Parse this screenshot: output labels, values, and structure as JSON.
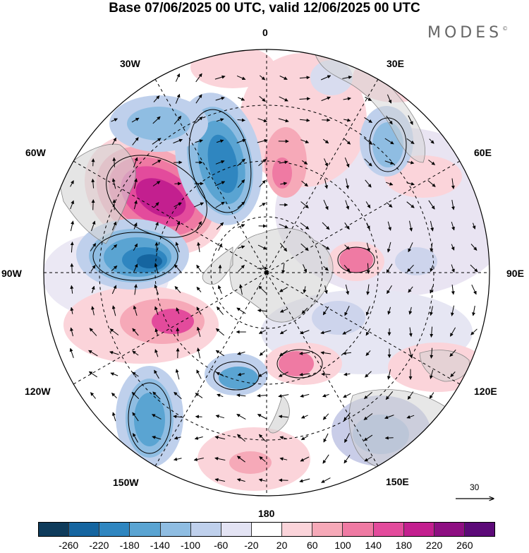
{
  "title": "Base 07/06/2025 00 UTC, valid 12/06/2025 00 UTC",
  "brand": "MODES",
  "brand_mark": "©",
  "longitude_labels": {
    "lon_0": "0",
    "lon_30e": "30E",
    "lon_60e": "60E",
    "lon_90e": "90E",
    "lon_120e": "120E",
    "lon_150e": "150E",
    "lon_180": "180",
    "lon_150w": "150W",
    "lon_120w": "120W",
    "lon_90w": "90W",
    "lon_60w": "60W",
    "lon_30w": "30W"
  },
  "reference_vector_label": "30",
  "colorbar": {
    "colors": [
      "#0e3b5b",
      "#1565a0",
      "#2f86c0",
      "#5aa4d2",
      "#8fbde2",
      "#bfd0ec",
      "#e3e3f3",
      "#ffffff",
      "#fbd4da",
      "#f6a9b8",
      "#ef7aa3",
      "#e34b9c",
      "#c31f8f",
      "#8e0f82",
      "#5c0a78"
    ],
    "tick_labels": [
      "-260",
      "-220",
      "-180",
      "-140",
      "-100",
      "-60",
      "-20",
      "20",
      "60",
      "100",
      "140",
      "180",
      "220",
      "260"
    ]
  },
  "legend_icons": [
    "arrow-icon"
  ]
}
